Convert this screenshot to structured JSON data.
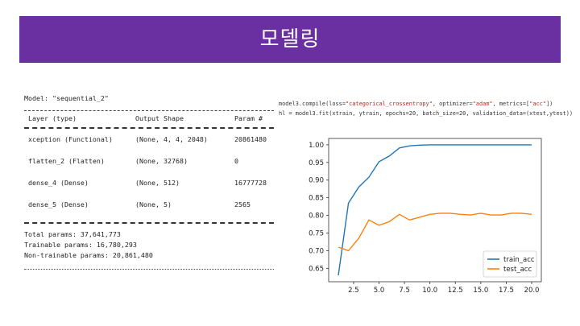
{
  "slide": {
    "title": "모델링",
    "banner_color": "#6a2fa0"
  },
  "model_summary": {
    "model_line": "Model: \"sequential_2\"",
    "headers": [
      "Layer (type)",
      "Output Shape",
      "Param #"
    ],
    "rows": [
      [
        "xception (Functional)",
        "(None, 4, 4, 2048)",
        "20861480"
      ],
      [
        "flatten_2 (Flatten)",
        "(None, 32768)",
        "0"
      ],
      [
        "dense_4 (Dense)",
        "(None, 512)",
        "16777728"
      ],
      [
        "dense_5 (Dense)",
        "(None, 5)",
        "2565"
      ]
    ],
    "total_params": "Total params: 37,641,773",
    "trainable_params": "Trainable params: 16,780,293",
    "non_trainable_params": "Non-trainable params: 20,861,480"
  },
  "code": {
    "line1_prefix": "model3.compile(loss=",
    "line1_loss": "\"categorical_crossentropy\"",
    "line1_mid": ", optimizer=",
    "line1_opt": "\"adam\"",
    "line1_mid2": ", metrics=[",
    "line1_metric": "\"acc\"",
    "line1_suffix": "])",
    "line2": "hl = model3.fit(xtrain, ytrain, epochs=20, batch_size=20, validation_data=(xtest,ytest))"
  },
  "chart_data": {
    "type": "line",
    "x": [
      1,
      2,
      3,
      4,
      5,
      6,
      7,
      8,
      9,
      10,
      11,
      12,
      13,
      14,
      15,
      16,
      17,
      18,
      19,
      20
    ],
    "series": [
      {
        "name": "train_acc",
        "color": "#1f77b4",
        "values": [
          0.63,
          0.835,
          0.88,
          0.908,
          0.952,
          0.968,
          0.991,
          0.997,
          0.999,
          1.0,
          1.0,
          1.0,
          1.0,
          1.0,
          1.0,
          1.0,
          1.0,
          1.0,
          1.0,
          1.0
        ]
      },
      {
        "name": "test_acc",
        "color": "#ff7f0e",
        "values": [
          0.71,
          0.7,
          0.735,
          0.787,
          0.772,
          0.782,
          0.803,
          0.787,
          0.795,
          0.803,
          0.806,
          0.806,
          0.803,
          0.801,
          0.806,
          0.801,
          0.801,
          0.806,
          0.806,
          0.803
        ]
      }
    ],
    "xticks": [
      2.5,
      5.0,
      7.5,
      10.0,
      12.5,
      15.0,
      17.5,
      20.0
    ],
    "xtick_labels": [
      "2.5",
      "5.0",
      "7.5",
      "10.0",
      "12.5",
      "15.0",
      "17.5",
      "20.0"
    ],
    "yticks": [
      0.65,
      0.7,
      0.75,
      0.8,
      0.85,
      0.9,
      0.95,
      1.0
    ],
    "ytick_labels": [
      "0.65",
      "0.70",
      "0.75",
      "0.80",
      "0.85",
      "0.90",
      "0.95",
      "1.00"
    ],
    "xlim": [
      0.05,
      20.95
    ],
    "ylim": [
      0.612,
      1.018
    ],
    "grid": false,
    "legend_position": "lower-right"
  }
}
